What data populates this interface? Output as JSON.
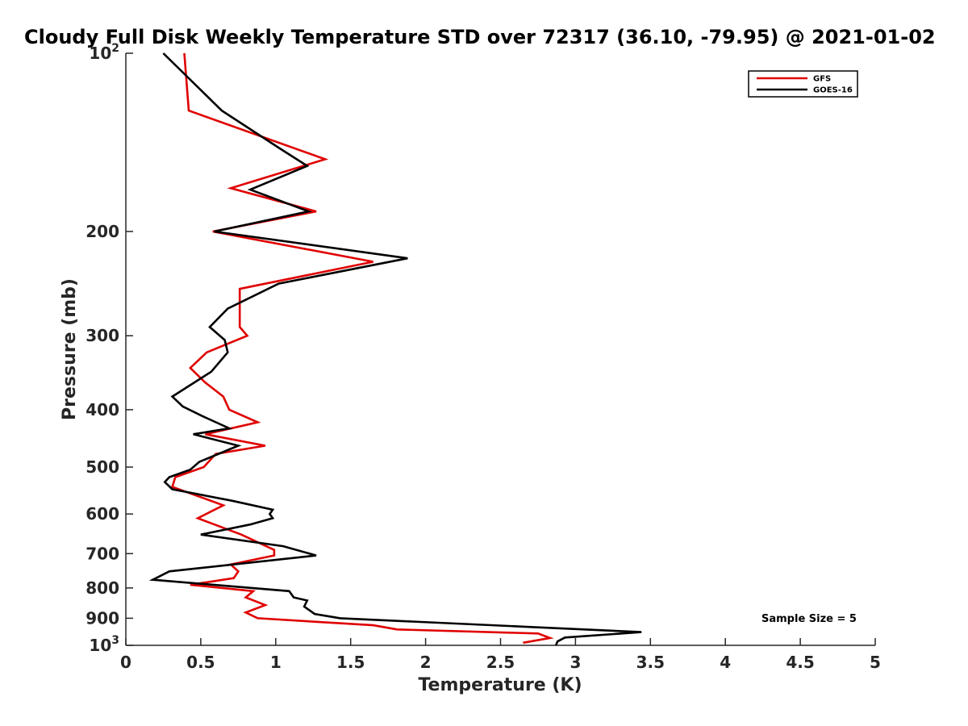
{
  "chart_data": {
    "type": "line",
    "title": "Cloudy Full Disk Weekly Temperature STD over 72317 (36.10, -79.95) @ 2021-01-02",
    "xlabel": "Temperature (K)",
    "ylabel": "Pressure (mb)",
    "xlim": [
      0,
      5
    ],
    "ylim": [
      100,
      1000
    ],
    "y_scale": "log",
    "y_reversed": true,
    "grid": false,
    "legend_position": "top-right",
    "x_ticks": [
      0,
      0.5,
      1,
      1.5,
      2,
      2.5,
      3,
      3.5,
      4,
      4.5,
      5
    ],
    "x_tick_labels": [
      "0",
      "0.5",
      "1",
      "1.5",
      "2",
      "2.5",
      "3",
      "3.5",
      "4",
      "4.5",
      "5"
    ],
    "y_ticks": [
      100,
      200,
      300,
      400,
      500,
      600,
      700,
      800,
      900,
      1000
    ],
    "y_tick_labels": [
      {
        "base": "10",
        "exp": "2"
      },
      {
        "base": "200",
        "exp": ""
      },
      {
        "base": "300",
        "exp": ""
      },
      {
        "base": "400",
        "exp": ""
      },
      {
        "base": "500",
        "exp": ""
      },
      {
        "base": "600",
        "exp": ""
      },
      {
        "base": "700",
        "exp": ""
      },
      {
        "base": "800",
        "exp": ""
      },
      {
        "base": "900",
        "exp": ""
      },
      {
        "base": "10",
        "exp": "3"
      }
    ],
    "annotation": "Sample Size = 5",
    "series": [
      {
        "name": "GFS",
        "color": "#e00000",
        "points": [
          [
            0.39,
            100
          ],
          [
            0.42,
            125
          ],
          [
            1.33,
            151
          ],
          [
            0.7,
            169
          ],
          [
            1.27,
            185
          ],
          [
            0.58,
            200
          ],
          [
            1.65,
            225
          ],
          [
            0.76,
            250
          ],
          [
            0.76,
            290
          ],
          [
            0.81,
            300
          ],
          [
            0.54,
            320
          ],
          [
            0.43,
            340
          ],
          [
            0.53,
            360
          ],
          [
            0.65,
            380
          ],
          [
            0.69,
            400
          ],
          [
            0.88,
            420
          ],
          [
            0.53,
            440
          ],
          [
            0.93,
            460
          ],
          [
            0.6,
            475
          ],
          [
            0.52,
            500
          ],
          [
            0.33,
            520
          ],
          [
            0.31,
            540
          ],
          [
            0.65,
            580
          ],
          [
            0.48,
            610
          ],
          [
            0.77,
            650
          ],
          [
            0.99,
            690
          ],
          [
            0.99,
            705
          ],
          [
            0.7,
            730
          ],
          [
            0.75,
            750
          ],
          [
            0.72,
            770
          ],
          [
            0.43,
            790
          ],
          [
            0.85,
            810
          ],
          [
            0.8,
            830
          ],
          [
            0.93,
            855
          ],
          [
            0.8,
            880
          ],
          [
            0.88,
            900
          ],
          [
            1.65,
            925
          ],
          [
            1.81,
            940
          ],
          [
            2.75,
            955
          ],
          [
            2.83,
            972
          ],
          [
            2.65,
            990
          ]
        ]
      },
      {
        "name": "GOES-16",
        "color": "#000000",
        "points": [
          [
            0.25,
            100
          ],
          [
            0.64,
            125
          ],
          [
            1.03,
            145
          ],
          [
            1.21,
            155
          ],
          [
            0.83,
            170
          ],
          [
            1.22,
            185
          ],
          [
            0.59,
            200
          ],
          [
            1.88,
            222
          ],
          [
            1.02,
            245
          ],
          [
            0.68,
            270
          ],
          [
            0.56,
            290
          ],
          [
            0.66,
            305
          ],
          [
            0.68,
            320
          ],
          [
            0.57,
            345
          ],
          [
            0.31,
            380
          ],
          [
            0.38,
            395
          ],
          [
            0.51,
            410
          ],
          [
            0.69,
            430
          ],
          [
            0.45,
            440
          ],
          [
            0.75,
            460
          ],
          [
            0.49,
            490
          ],
          [
            0.43,
            505
          ],
          [
            0.29,
            520
          ],
          [
            0.26,
            530
          ],
          [
            0.31,
            545
          ],
          [
            0.71,
            570
          ],
          [
            0.98,
            590
          ],
          [
            0.96,
            600
          ],
          [
            0.98,
            610
          ],
          [
            0.83,
            625
          ],
          [
            0.5,
            650
          ],
          [
            1.05,
            680
          ],
          [
            1.27,
            705
          ],
          [
            0.29,
            750
          ],
          [
            0.18,
            775
          ],
          [
            1.09,
            810
          ],
          [
            1.12,
            830
          ],
          [
            1.21,
            840
          ],
          [
            1.19,
            860
          ],
          [
            1.26,
            885
          ],
          [
            1.43,
            900
          ],
          [
            2.66,
            930
          ],
          [
            3.44,
            950
          ],
          [
            2.93,
            970
          ],
          [
            2.88,
            985
          ],
          [
            2.87,
            1000
          ]
        ]
      }
    ]
  }
}
